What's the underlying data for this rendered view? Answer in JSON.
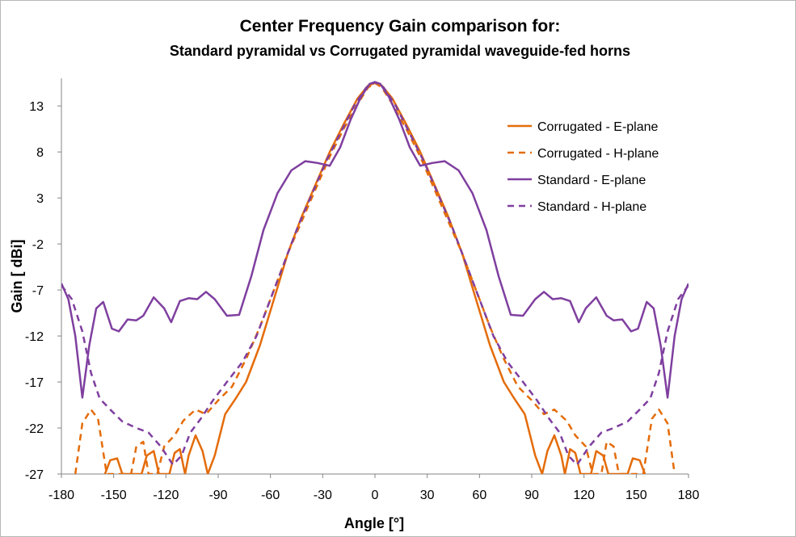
{
  "chart_data": {
    "type": "line",
    "title": "Center Frequency Gain comparison for:",
    "subtitle": "Standard pyramidal vs Corrugated pyramidal waveguide-fed horns",
    "xlabel": "Angle [°]",
    "ylabel": "Gain [ dBi]",
    "xlim": [
      -180,
      180
    ],
    "ylim": [
      -27,
      16
    ],
    "xticks": [
      -180,
      -150,
      -120,
      -90,
      -60,
      -30,
      0,
      30,
      60,
      90,
      120,
      150,
      180
    ],
    "yticks": [
      13,
      8,
      3,
      -2,
      -7,
      -12,
      -17,
      -22,
      -27
    ],
    "grid": false,
    "legend_position": "top-right",
    "series": [
      {
        "name": "Corrugated - E-plane",
        "color": "#E46C0A",
        "dash": "solid",
        "points": [
          [
            -155,
            -27
          ],
          [
            -152,
            -25.5
          ],
          [
            -148,
            -25.3
          ],
          [
            -145,
            -27
          ],
          [
            -134,
            -27
          ],
          [
            -131,
            -25
          ],
          [
            -127,
            -24.5
          ],
          [
            -124,
            -27
          ],
          [
            -118,
            -27
          ],
          [
            -115,
            -24.7
          ],
          [
            -112,
            -24.3
          ],
          [
            -109,
            -27
          ],
          [
            -107,
            -25
          ],
          [
            -103,
            -22.8
          ],
          [
            -99,
            -24.5
          ],
          [
            -96,
            -27
          ],
          [
            -92,
            -25
          ],
          [
            -86,
            -20.5
          ],
          [
            -80,
            -18.8
          ],
          [
            -74,
            -17
          ],
          [
            -66,
            -13
          ],
          [
            -58,
            -8
          ],
          [
            -50,
            -3
          ],
          [
            -42,
            1
          ],
          [
            -34,
            4.5
          ],
          [
            -26,
            8
          ],
          [
            -18,
            11
          ],
          [
            -10,
            13.8
          ],
          [
            -4,
            15.2
          ],
          [
            0,
            15.5
          ],
          [
            4,
            15.2
          ],
          [
            10,
            13.8
          ],
          [
            18,
            11
          ],
          [
            26,
            8
          ],
          [
            34,
            4.5
          ],
          [
            42,
            1
          ],
          [
            50,
            -3
          ],
          [
            58,
            -8
          ],
          [
            66,
            -13
          ],
          [
            74,
            -17
          ],
          [
            80,
            -18.8
          ],
          [
            86,
            -20.5
          ],
          [
            92,
            -25
          ],
          [
            96,
            -27
          ],
          [
            99,
            -24.5
          ],
          [
            103,
            -22.8
          ],
          [
            107,
            -25
          ],
          [
            109,
            -27
          ],
          [
            112,
            -24.3
          ],
          [
            115,
            -24.7
          ],
          [
            118,
            -27
          ],
          [
            124,
            -27
          ],
          [
            127,
            -24.5
          ],
          [
            131,
            -25
          ],
          [
            134,
            -27
          ],
          [
            145,
            -27
          ],
          [
            148,
            -25.3
          ],
          [
            152,
            -25.5
          ],
          [
            155,
            -27
          ]
        ]
      },
      {
        "name": "Corrugated - H-plane",
        "color": "#E46C0A",
        "dash": "dashed",
        "points": [
          [
            -172,
            -27
          ],
          [
            -168,
            -21.5
          ],
          [
            -163,
            -20
          ],
          [
            -159,
            -21
          ],
          [
            -154,
            -27
          ],
          [
            -140,
            -27
          ],
          [
            -137,
            -24
          ],
          [
            -133,
            -23.5
          ],
          [
            -130,
            -27
          ],
          [
            -125,
            -27
          ],
          [
            -121,
            -24
          ],
          [
            -115,
            -22.8
          ],
          [
            -110,
            -21.2
          ],
          [
            -103,
            -20
          ],
          [
            -97,
            -20.5
          ],
          [
            -90,
            -19
          ],
          [
            -82,
            -17.5
          ],
          [
            -74,
            -14.5
          ],
          [
            -66,
            -11
          ],
          [
            -58,
            -7
          ],
          [
            -50,
            -3
          ],
          [
            -42,
            0.5
          ],
          [
            -34,
            4
          ],
          [
            -26,
            7.5
          ],
          [
            -18,
            10.5
          ],
          [
            -10,
            13.2
          ],
          [
            -4,
            15
          ],
          [
            0,
            15.5
          ],
          [
            4,
            15
          ],
          [
            10,
            13.2
          ],
          [
            18,
            10.5
          ],
          [
            26,
            7.5
          ],
          [
            34,
            4
          ],
          [
            42,
            0.5
          ],
          [
            50,
            -3
          ],
          [
            58,
            -7
          ],
          [
            66,
            -11
          ],
          [
            74,
            -14.5
          ],
          [
            82,
            -17.5
          ],
          [
            90,
            -19
          ],
          [
            97,
            -20.5
          ],
          [
            103,
            -20
          ],
          [
            110,
            -21.2
          ],
          [
            115,
            -22.8
          ],
          [
            121,
            -24
          ],
          [
            125,
            -27
          ],
          [
            130,
            -27
          ],
          [
            133,
            -23.5
          ],
          [
            137,
            -24
          ],
          [
            140,
            -27
          ],
          [
            154,
            -27
          ],
          [
            159,
            -21
          ],
          [
            163,
            -20
          ],
          [
            168,
            -21.5
          ],
          [
            172,
            -27
          ]
        ]
      },
      {
        "name": "Standard - E-plane",
        "color": "#7F3F9F",
        "dash": "solid",
        "points": [
          [
            -180,
            -6.3
          ],
          [
            -176,
            -8
          ],
          [
            -172,
            -12
          ],
          [
            -168,
            -18.7
          ],
          [
            -164,
            -13
          ],
          [
            -160,
            -9
          ],
          [
            -156,
            -8.3
          ],
          [
            -151,
            -11.2
          ],
          [
            -147,
            -11.5
          ],
          [
            -142,
            -10.2
          ],
          [
            -137,
            -10.3
          ],
          [
            -133,
            -9.8
          ],
          [
            -127,
            -7.8
          ],
          [
            -121,
            -9
          ],
          [
            -117,
            -10.5
          ],
          [
            -112,
            -8.2
          ],
          [
            -107,
            -7.9
          ],
          [
            -102,
            -8
          ],
          [
            -97,
            -7.2
          ],
          [
            -92,
            -8
          ],
          [
            -85,
            -9.8
          ],
          [
            -78,
            -9.7
          ],
          [
            -71,
            -5.5
          ],
          [
            -64,
            -0.5
          ],
          [
            -56,
            3.5
          ],
          [
            -48,
            6
          ],
          [
            -40,
            7
          ],
          [
            -33,
            6.8
          ],
          [
            -26,
            6.5
          ],
          [
            -20,
            8.5
          ],
          [
            -14,
            11.5
          ],
          [
            -8,
            14
          ],
          [
            -3,
            15.4
          ],
          [
            0,
            15.6
          ],
          [
            3,
            15.4
          ],
          [
            8,
            14
          ],
          [
            14,
            11.5
          ],
          [
            20,
            8.5
          ],
          [
            26,
            6.5
          ],
          [
            33,
            6.8
          ],
          [
            40,
            7
          ],
          [
            48,
            6
          ],
          [
            56,
            3.5
          ],
          [
            64,
            -0.5
          ],
          [
            71,
            -5.5
          ],
          [
            78,
            -9.7
          ],
          [
            85,
            -9.8
          ],
          [
            92,
            -8
          ],
          [
            97,
            -7.2
          ],
          [
            102,
            -8
          ],
          [
            107,
            -7.9
          ],
          [
            112,
            -8.2
          ],
          [
            117,
            -10.5
          ],
          [
            121,
            -9
          ],
          [
            127,
            -7.8
          ],
          [
            133,
            -9.8
          ],
          [
            137,
            -10.3
          ],
          [
            142,
            -10.2
          ],
          [
            147,
            -11.5
          ],
          [
            151,
            -11.2
          ],
          [
            156,
            -8.3
          ],
          [
            160,
            -9
          ],
          [
            164,
            -13
          ],
          [
            168,
            -18.7
          ],
          [
            172,
            -12
          ],
          [
            176,
            -8
          ],
          [
            180,
            -6.3
          ]
        ]
      },
      {
        "name": "Standard - H-plane",
        "color": "#7F3F9F",
        "dash": "dashed",
        "points": [
          [
            -180,
            -6.5
          ],
          [
            -174,
            -8
          ],
          [
            -168,
            -11.5
          ],
          [
            -163,
            -16
          ],
          [
            -158,
            -18.8
          ],
          [
            -152,
            -20
          ],
          [
            -145,
            -21.3
          ],
          [
            -137,
            -22
          ],
          [
            -130,
            -22.5
          ],
          [
            -123,
            -24
          ],
          [
            -116,
            -26
          ],
          [
            -111,
            -25
          ],
          [
            -106,
            -22.5
          ],
          [
            -100,
            -21
          ],
          [
            -93,
            -19
          ],
          [
            -85,
            -17
          ],
          [
            -76,
            -14.8
          ],
          [
            -68,
            -12
          ],
          [
            -60,
            -8
          ],
          [
            -52,
            -4
          ],
          [
            -44,
            0
          ],
          [
            -36,
            3.5
          ],
          [
            -28,
            7
          ],
          [
            -20,
            10
          ],
          [
            -12,
            13
          ],
          [
            -5,
            15
          ],
          [
            0,
            15.6
          ],
          [
            5,
            15
          ],
          [
            12,
            13
          ],
          [
            20,
            10
          ],
          [
            28,
            7
          ],
          [
            36,
            3.5
          ],
          [
            44,
            0
          ],
          [
            52,
            -4
          ],
          [
            60,
            -8
          ],
          [
            68,
            -12
          ],
          [
            76,
            -14.8
          ],
          [
            85,
            -17
          ],
          [
            93,
            -19
          ],
          [
            100,
            -21
          ],
          [
            106,
            -22.5
          ],
          [
            111,
            -25
          ],
          [
            116,
            -26
          ],
          [
            123,
            -24
          ],
          [
            130,
            -22.5
          ],
          [
            137,
            -22
          ],
          [
            145,
            -21.3
          ],
          [
            152,
            -20
          ],
          [
            158,
            -18.8
          ],
          [
            163,
            -16
          ],
          [
            168,
            -11.5
          ],
          [
            174,
            -8
          ],
          [
            180,
            -6.5
          ]
        ]
      }
    ]
  }
}
